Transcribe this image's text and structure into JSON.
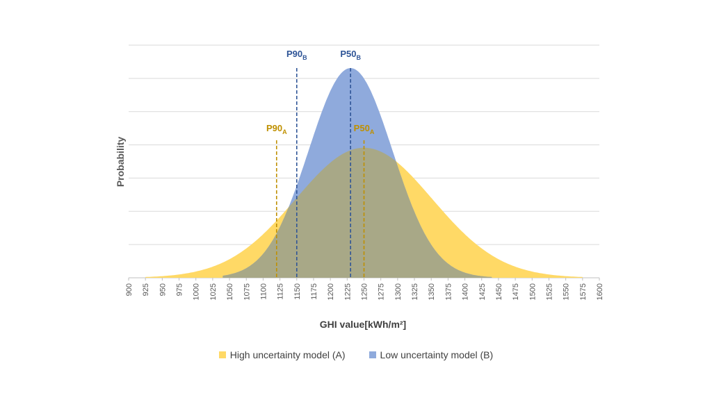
{
  "chart_data": {
    "type": "area",
    "title": "",
    "xlabel": "GHI value[kWh/m²]",
    "ylabel": "Probability",
    "xlim": [
      900,
      1600
    ],
    "x_ticks": [
      "900",
      "925",
      "950",
      "975",
      "1000",
      "1025",
      "1050",
      "1075",
      "1100",
      "1125",
      "1150",
      "1175",
      "1200",
      "1225",
      "1250",
      "1275",
      "1300",
      "1325",
      "1350",
      "1375",
      "1400",
      "1425",
      "1450",
      "1475",
      "1500",
      "1525",
      "1550",
      "1575",
      "1600"
    ],
    "y_ticks_labeled": false,
    "grid": true,
    "legend_position": "bottom",
    "series": [
      {
        "name": "High uncertainty model (A)",
        "color": "#FFD966",
        "distribution": "normal",
        "mean": 1250,
        "p90": 1120,
        "peak_relative": 0.62,
        "support": [
          925,
          1575
        ]
      },
      {
        "name": "Low uncertainty model (B)",
        "color": "#8FAADC",
        "distribution": "normal",
        "mean": 1230,
        "p90": 1150,
        "peak_relative": 1.0,
        "support": [
          1040,
          1440
        ]
      }
    ],
    "overlap_color": "#A8A887",
    "markers": [
      {
        "label": "P90",
        "sub": "B",
        "x": 1150,
        "color": "#2F5597"
      },
      {
        "label": "P50",
        "sub": "B",
        "x": 1230,
        "color": "#2F5597"
      },
      {
        "label": "P90",
        "sub": "A",
        "x": 1120,
        "color": "#BF9000"
      },
      {
        "label": "P50",
        "sub": "A",
        "x": 1250,
        "color": "#BF9000"
      }
    ]
  }
}
